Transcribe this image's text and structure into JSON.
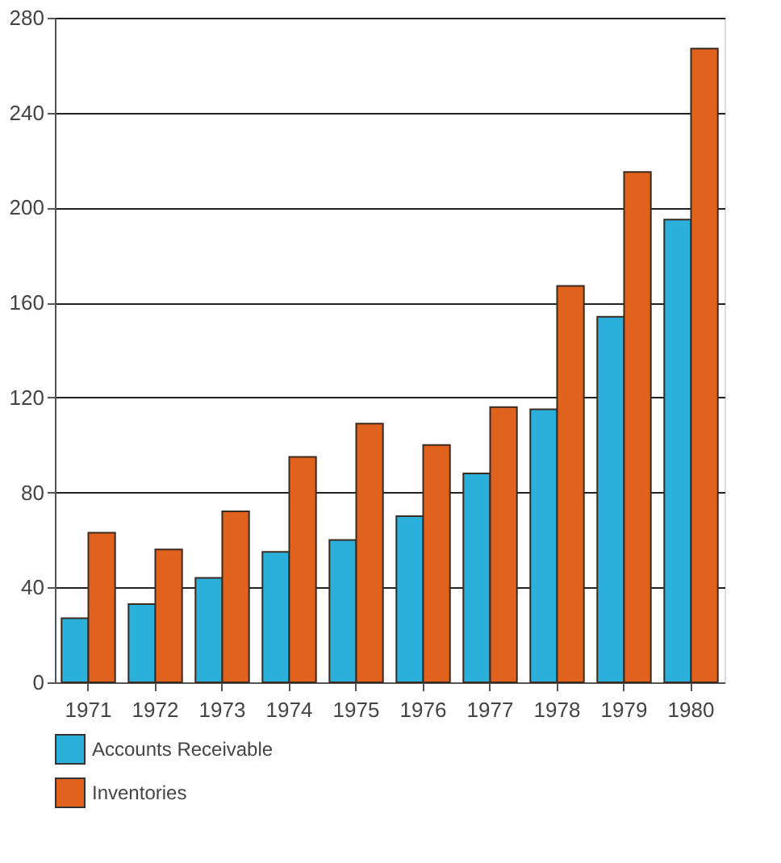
{
  "chart_data": {
    "type": "bar",
    "categories": [
      "1971",
      "1972",
      "1973",
      "1974",
      "1975",
      "1976",
      "1977",
      "1978",
      "1979",
      "1980"
    ],
    "series": [
      {
        "name": "Accounts Receivable",
        "color": "#2bb0dc",
        "values": [
          27,
          33,
          44,
          55,
          60,
          70,
          88,
          115,
          154,
          195
        ]
      },
      {
        "name": "Inventories",
        "color": "#e0621c",
        "values": [
          63,
          56,
          72,
          95,
          109,
          100,
          116,
          167,
          215,
          267
        ]
      }
    ],
    "ylim": [
      0,
      280
    ],
    "yticks": [
      0,
      40,
      80,
      120,
      160,
      200,
      240,
      280
    ],
    "grid": "y",
    "legend": "bottom"
  }
}
